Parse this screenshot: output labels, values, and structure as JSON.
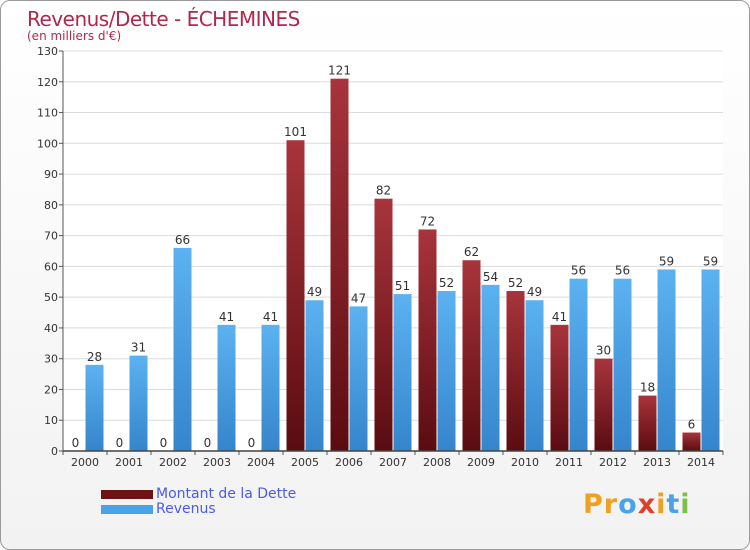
{
  "chart_data": {
    "type": "bar",
    "title": "Revenus/Dette - ÉCHEMINES",
    "subtitle": "(en milliers d'€)",
    "categories": [
      "2000",
      "2001",
      "2002",
      "2003",
      "2004",
      "2005",
      "2006",
      "2007",
      "2008",
      "2009",
      "2010",
      "2011",
      "2012",
      "2013",
      "2014"
    ],
    "series": [
      {
        "name": "Montant de la Dette",
        "color": "#7a1a1e",
        "values": [
          0,
          0,
          0,
          0,
          0,
          101,
          121,
          82,
          72,
          62,
          52,
          41,
          30,
          18,
          6
        ]
      },
      {
        "name": "Revenus",
        "color": "#4aa3e8",
        "values": [
          28,
          31,
          66,
          41,
          41,
          49,
          47,
          51,
          52,
          54,
          49,
          56,
          56,
          59,
          59
        ]
      }
    ],
    "ylim": [
      0,
      130
    ],
    "yticks": [
      0,
      10,
      20,
      30,
      40,
      50,
      60,
      70,
      80,
      90,
      100,
      110,
      120,
      130
    ],
    "grid": true,
    "legend_position": "bottom-left"
  },
  "logo_text": "Proxiti"
}
